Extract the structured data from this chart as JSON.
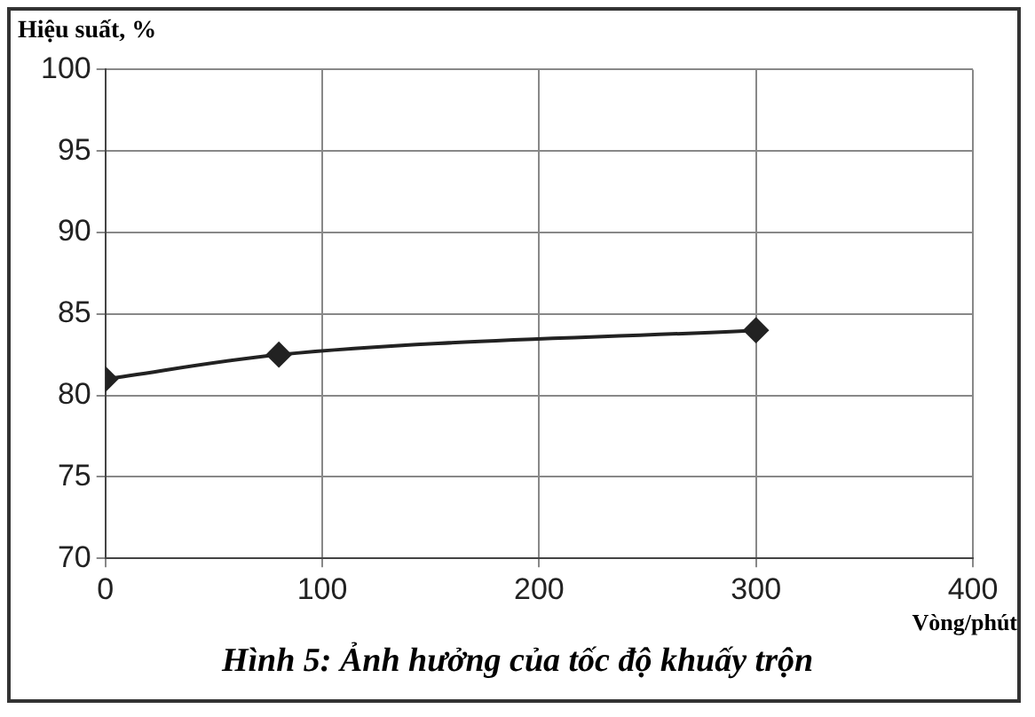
{
  "chart_data": {
    "type": "line",
    "ylabel": "Hiệu suất, %",
    "xlabel": "Vòng/phút",
    "annotations": [
      "Hình 5: Ảnh hưởng của tốc độ khuấy trộn"
    ],
    "x": [
      0,
      80,
      300
    ],
    "series": [
      {
        "color": "#222222",
        "values": [
          81,
          82.5,
          84
        ]
      }
    ],
    "xlim": [
      0,
      400
    ],
    "xticks": [
      0,
      100,
      200,
      300,
      400
    ],
    "ylim": [
      70,
      100
    ],
    "yticks": [
      70,
      75,
      80,
      85,
      90,
      95,
      100
    ],
    "grid": true,
    "legend": false,
    "marker": "diamond",
    "line_style": "solid"
  }
}
